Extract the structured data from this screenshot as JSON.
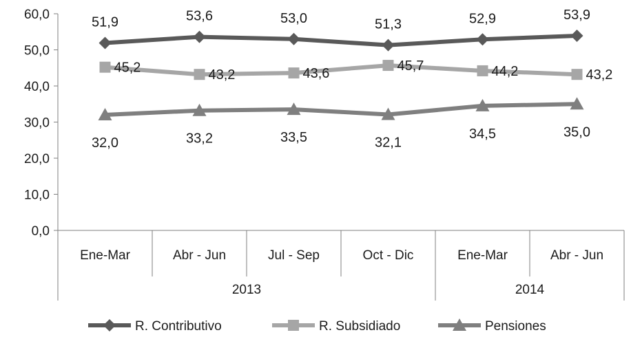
{
  "chart_data": {
    "type": "line",
    "ylim": [
      0,
      60
    ],
    "ytick_values": [
      0,
      10,
      20,
      30,
      40,
      50,
      60
    ],
    "ytick_labels": [
      "0,0",
      "10,0",
      "20,0",
      "30,0",
      "40,0",
      "50,0",
      "60,0"
    ],
    "categories": [
      "Ene-Mar",
      "Abr - Jun",
      "Jul - Sep",
      "Oct - Dic",
      "Ene-Mar",
      "Abr - Jun"
    ],
    "year_groups": [
      {
        "label": "2013",
        "span": 4
      },
      {
        "label": "2014",
        "span": 2
      }
    ],
    "series": [
      {
        "name": "R. Contributivo",
        "marker": "diamond",
        "color": "#595959",
        "values": [
          51.9,
          53.6,
          53.0,
          51.3,
          52.9,
          53.9
        ],
        "labels": [
          "51,9",
          "53,6",
          "53,0",
          "51,3",
          "52,9",
          "53,9"
        ],
        "label_position": "above"
      },
      {
        "name": "R. Subsidiado",
        "marker": "square",
        "color": "#a6a6a6",
        "values": [
          45.2,
          43.2,
          43.6,
          45.7,
          44.2,
          43.2
        ],
        "labels": [
          "45,2",
          "43,2",
          "43,6",
          "45,7",
          "44,2",
          "43,2"
        ],
        "label_position": "right"
      },
      {
        "name": "Pensiones",
        "marker": "triangle",
        "color": "#7f7f7f",
        "values": [
          32.0,
          33.2,
          33.5,
          32.1,
          34.5,
          35.0
        ],
        "labels": [
          "32,0",
          "33,2",
          "33,5",
          "32,1",
          "34,5",
          "35,0"
        ],
        "label_position": "below"
      }
    ],
    "legend_position": "bottom",
    "grid": false
  }
}
